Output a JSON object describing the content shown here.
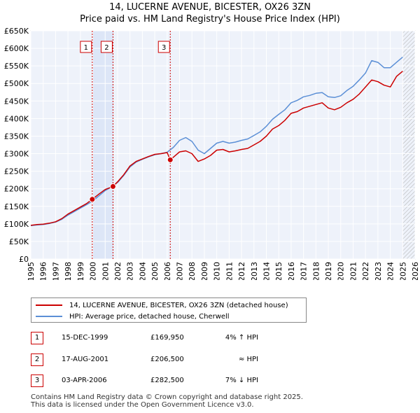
{
  "chart_data": {
    "type": "line",
    "title": "14, LUCERNE AVENUE, BICESTER, OX26 3ZN",
    "subtitle": "Price paid vs. HM Land Registry's House Price Index (HPI)",
    "xlabel": "",
    "ylabel": "",
    "xlim": [
      1995,
      2026
    ],
    "ylim": [
      0,
      650000
    ],
    "x_ticks": [
      "1995",
      "1996",
      "1997",
      "1998",
      "1999",
      "2000",
      "2001",
      "2002",
      "2003",
      "2004",
      "2005",
      "2006",
      "2007",
      "2008",
      "2009",
      "2010",
      "2011",
      "2012",
      "2013",
      "2014",
      "2015",
      "2016",
      "2017",
      "2018",
      "2019",
      "2020",
      "2021",
      "2022",
      "2023",
      "2024",
      "2025",
      "2026"
    ],
    "y_ticks": [
      {
        "value": 0,
        "label": "£0"
      },
      {
        "value": 50000,
        "label": "£50K"
      },
      {
        "value": 100000,
        "label": "£100K"
      },
      {
        "value": 150000,
        "label": "£150K"
      },
      {
        "value": 200000,
        "label": "£200K"
      },
      {
        "value": 250000,
        "label": "£250K"
      },
      {
        "value": 300000,
        "label": "£300K"
      },
      {
        "value": 350000,
        "label": "£350K"
      },
      {
        "value": 400000,
        "label": "£400K"
      },
      {
        "value": 450000,
        "label": "£450K"
      },
      {
        "value": 500000,
        "label": "£500K"
      },
      {
        "value": 550000,
        "label": "£550K"
      },
      {
        "value": 600000,
        "label": "£600K"
      },
      {
        "value": 650000,
        "label": "£650K"
      }
    ],
    "grid": true,
    "highlight_band": [
      1999.96,
      2001.63
    ],
    "future_hatch_from": 2025.0,
    "series": [
      {
        "name": "14, LUCERNE AVENUE, BICESTER, OX26 3ZN (detached house)",
        "color": "#cc0000",
        "x": [
          1995.0,
          1995.5,
          1996.0,
          1996.5,
          1997.0,
          1997.5,
          1998.0,
          1998.5,
          1999.0,
          1999.5,
          1999.96,
          2000.5,
          2001.0,
          2001.63,
          2002.0,
          2002.5,
          2003.0,
          2003.5,
          2004.0,
          2004.5,
          2005.0,
          2005.5,
          2006.0,
          2006.25,
          2006.5,
          2007.0,
          2007.5,
          2008.0,
          2008.5,
          2009.0,
          2009.5,
          2010.0,
          2010.5,
          2011.0,
          2011.5,
          2012.0,
          2012.5,
          2013.0,
          2013.5,
          2014.0,
          2014.5,
          2015.0,
          2015.5,
          2016.0,
          2016.5,
          2017.0,
          2017.5,
          2018.0,
          2018.5,
          2019.0,
          2019.5,
          2020.0,
          2020.5,
          2021.0,
          2021.5,
          2022.0,
          2022.5,
          2023.0,
          2023.5,
          2024.0,
          2024.5,
          2025.0
        ],
        "y": [
          96000,
          98000,
          99000,
          102000,
          106000,
          115000,
          128000,
          138000,
          148000,
          158000,
          169950,
          185000,
          198000,
          206500,
          220000,
          240000,
          265000,
          278000,
          285000,
          292000,
          298000,
          300000,
          303000,
          282500,
          290000,
          305000,
          308000,
          300000,
          278000,
          285000,
          295000,
          310000,
          312000,
          305000,
          308000,
          312000,
          315000,
          325000,
          335000,
          350000,
          370000,
          380000,
          395000,
          415000,
          420000,
          430000,
          435000,
          440000,
          445000,
          430000,
          425000,
          432000,
          445000,
          455000,
          470000,
          490000,
          510000,
          505000,
          495000,
          490000,
          520000,
          535000
        ]
      },
      {
        "name": "HPI: Average price, detached house, Cherwell",
        "color": "#5b8fd6",
        "x": [
          1995.0,
          1995.5,
          1996.0,
          1996.5,
          1997.0,
          1997.5,
          1998.0,
          1998.5,
          1999.0,
          1999.5,
          2000.0,
          2000.5,
          2001.0,
          2001.5,
          2002.0,
          2002.5,
          2003.0,
          2003.5,
          2004.0,
          2004.5,
          2005.0,
          2005.5,
          2006.0,
          2006.5,
          2007.0,
          2007.5,
          2008.0,
          2008.5,
          2009.0,
          2009.5,
          2010.0,
          2010.5,
          2011.0,
          2011.5,
          2012.0,
          2012.5,
          2013.0,
          2013.5,
          2014.0,
          2014.5,
          2015.0,
          2015.5,
          2016.0,
          2016.5,
          2017.0,
          2017.5,
          2018.0,
          2018.5,
          2019.0,
          2019.5,
          2020.0,
          2020.5,
          2021.0,
          2021.5,
          2022.0,
          2022.5,
          2023.0,
          2023.5,
          2024.0,
          2024.5,
          2025.0
        ],
        "y": [
          95000,
          97000,
          98000,
          101000,
          105000,
          113000,
          125000,
          135000,
          145000,
          155000,
          165000,
          180000,
          195000,
          205000,
          218000,
          238000,
          262000,
          276000,
          284000,
          291000,
          297000,
          300000,
          304000,
          318000,
          338000,
          346000,
          335000,
          310000,
          300000,
          315000,
          330000,
          335000,
          330000,
          333000,
          338000,
          342000,
          352000,
          362000,
          378000,
          398000,
          412000,
          425000,
          445000,
          452000,
          462000,
          466000,
          472000,
          474000,
          462000,
          460000,
          465000,
          480000,
          492000,
          510000,
          530000,
          565000,
          560000,
          545000,
          545000,
          560000,
          575000
        ]
      }
    ],
    "sale_markers": [
      {
        "id": "1",
        "x": 1999.96,
        "y": 169950
      },
      {
        "id": "2",
        "x": 2001.63,
        "y": 206500
      },
      {
        "id": "3",
        "x": 2006.25,
        "y": 282500
      }
    ]
  },
  "legend": {
    "property_label": "14, LUCERNE AVENUE, BICESTER, OX26 3ZN (detached house)",
    "hpi_label": "HPI: Average price, detached house, Cherwell",
    "property_color": "#cc0000",
    "hpi_color": "#5b8fd6"
  },
  "sales": [
    {
      "id": "1",
      "date": "15-DEC-1999",
      "price": "£169,950",
      "hpi": "4% ↑ HPI"
    },
    {
      "id": "2",
      "date": "17-AUG-2001",
      "price": "£206,500",
      "hpi": "≈ HPI"
    },
    {
      "id": "3",
      "date": "03-APR-2006",
      "price": "£282,500",
      "hpi": "7% ↓ HPI"
    }
  ],
  "footer": {
    "line1": "Contains HM Land Registry data © Crown copyright and database right 2025.",
    "line2": "This data is licensed under the Open Government Licence v3.0."
  }
}
